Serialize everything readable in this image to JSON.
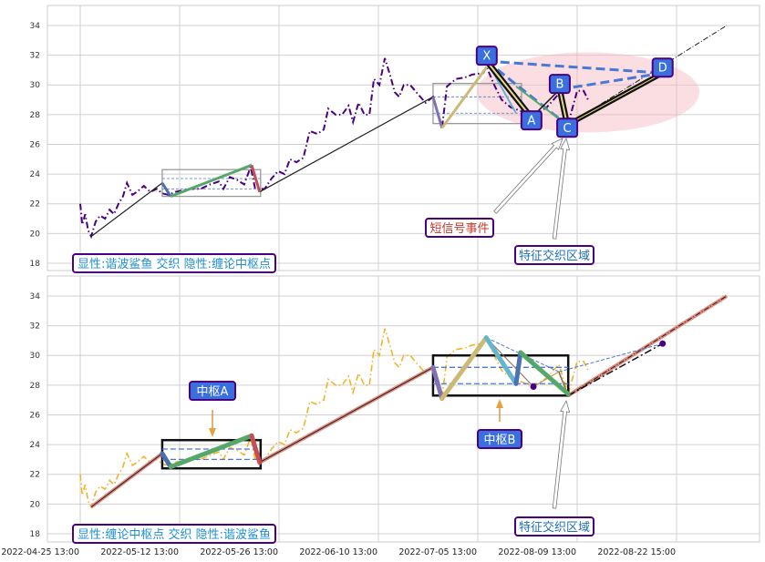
{
  "chart_data": [
    {
      "type": "line",
      "panel": "top",
      "ylim": [
        17.5,
        35.2
      ],
      "yticks": [
        18,
        20,
        22,
        24,
        26,
        28,
        30,
        32,
        34
      ],
      "grid": true,
      "price_color": "#4b0082",
      "price": {
        "x": [
          0,
          0.4,
          1,
          1.6,
          2.2,
          3.1,
          4,
          5,
          5.9,
          6.8,
          7.7,
          8.6,
          9.4,
          10.5,
          11.4,
          12.8,
          14.1,
          15.4,
          16.5,
          17.8,
          19.1,
          20.5,
          22.4,
          24.2,
          26.1,
          27.9,
          28.8,
          30.1,
          31.6,
          33,
          34.3,
          35.2,
          37.1,
          38.5,
          39.8,
          41.1,
          42.2,
          43.5,
          44.9,
          46.2,
          47.7,
          49,
          49.9,
          51.4,
          52.7,
          54,
          54.9,
          56,
          57.2,
          58.2,
          59.1,
          60.2,
          61.3,
          62.4,
          63.3,
          64.2,
          65.1,
          66.4,
          67.9,
          69.5,
          71,
          72.8,
          73.8,
          75.6,
          77.4,
          78.9,
          81.1,
          81.8,
          83.3,
          84.8,
          86.6,
          89,
          91.2,
          93.9,
          96.3,
          98.2,
          100,
          101.3,
          102.2
        ],
        "y": [
          22.0,
          20.6,
          21.3,
          20.2,
          19.8,
          20.8,
          21.2,
          21.0,
          21.6,
          21.3,
          22.0,
          22.5,
          23.4,
          22.6,
          22.8,
          23.2,
          22.8,
          23.0,
          22.7,
          22.6,
          22.8,
          22.9,
          23.0,
          23.0,
          23.3,
          23.5,
          23.0,
          23.8,
          23.6,
          23.3,
          24.5,
          23.0,
          23.0,
          23.7,
          24.2,
          24.0,
          25.0,
          24.8,
          25.1,
          26.9,
          26.7,
          27.0,
          28.4,
          28.0,
          28.0,
          28.6,
          27.5,
          28.8,
          28.0,
          28.0,
          30.4,
          30.0,
          31.8,
          30.6,
          29.5,
          29.2,
          30.0,
          30.0,
          29.4,
          28.8,
          29.2,
          27.1,
          29.9,
          30.4,
          30.5,
          30.7,
          30.8,
          31.2,
          30.0,
          29.0,
          28.5,
          28.2,
          27.9,
          28.5,
          29.4,
          27.4,
          29.6,
          29.6,
          29.0
        ]
      },
      "pattern_points": [
        {
          "label": "X",
          "x": 81.8,
          "y": 31.6
        },
        {
          "label": "A",
          "x": 90.8,
          "y": 27.8
        },
        {
          "label": "B",
          "x": 96.5,
          "y": 29.7
        },
        {
          "label": "C",
          "x": 98.0,
          "y": 27.3
        },
        {
          "label": "D",
          "x": 117.2,
          "y": 30.8
        }
      ],
      "annotations": [
        {
          "text": "短信号事件",
          "color": "#c0392b"
        },
        {
          "text": "特征交织区域",
          "color": "#1f6fb5"
        }
      ],
      "legend_text": "显性:谐波鲨鱼 交织 隐性:缠论中枢点"
    },
    {
      "type": "line",
      "panel": "bottom",
      "ylim": [
        17.5,
        35.2
      ],
      "yticks": [
        18,
        20,
        22,
        24,
        26,
        28,
        30,
        32,
        34
      ],
      "grid": true,
      "price_color": "#f0b429",
      "annotations": [
        {
          "text": "中枢A"
        },
        {
          "text": "中枢B"
        },
        {
          "text": "特征交织区域",
          "color": "#1f6fb5"
        }
      ],
      "legend_text": "显性:缠论中枢点 交织 隐性:谐波鲨鱼"
    }
  ],
  "xaxis": {
    "tick_labels": [
      "2022-04-25 13:00",
      "2022-05-12 13:00",
      "2022-05-26 13:00",
      "2022-06-10 13:00",
      "2022-07-05 13:00",
      "2022-08-09 13:00",
      "2022-08-22 15:00"
    ]
  }
}
